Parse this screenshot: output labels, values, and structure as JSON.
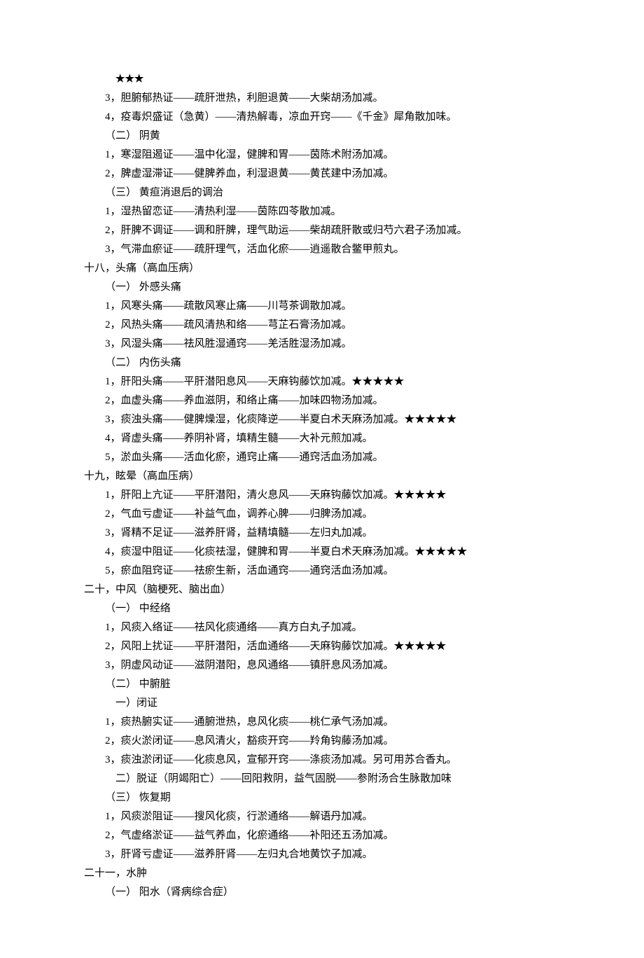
{
  "lines": [
    {
      "cls": "indent-1 stars",
      "name": "stars-line",
      "text": "★★★"
    },
    {
      "cls": "indent-2",
      "name": "item-17-3",
      "text": "3，胆腑郁热证——疏肝泄热，利胆退黄——大柴胡汤加减。"
    },
    {
      "cls": "indent-2",
      "name": "item-17-4",
      "text": "4，疫毒炽盛证（急黄）——清热解毒，凉血开窍——《千金》犀角散加味。"
    },
    {
      "cls": "indent-2",
      "name": "subsection-17-2",
      "text": "（二） 阴黄"
    },
    {
      "cls": "indent-2",
      "name": "item-17-2-1",
      "text": "1，寒湿阻遏证——温中化湿，健脾和胃——茵陈术附汤加减。"
    },
    {
      "cls": "indent-2",
      "name": "item-17-2-2",
      "text": "2，脾虚湿滞证——健脾养血，利湿退黄——黄芪建中汤加减。"
    },
    {
      "cls": "indent-2",
      "name": "subsection-17-3",
      "text": "（三） 黄疸消退后的调治"
    },
    {
      "cls": "indent-2",
      "name": "item-17-3-1",
      "text": "1，湿热留恋证——清热利湿——茵陈四苓散加减。"
    },
    {
      "cls": "indent-2",
      "name": "item-17-3-2",
      "text": "2，肝脾不调证——调和肝脾，理气助运——柴胡疏肝散或归芍六君子汤加减。"
    },
    {
      "cls": "indent-2",
      "name": "item-17-3-3",
      "text": "3，气滞血瘀证——疏肝理气，活血化瘀——逍遥散合鳖甲煎丸。"
    },
    {
      "cls": "section",
      "name": "section-18",
      "text": "十八，头痛（高血压病）"
    },
    {
      "cls": "indent-2",
      "name": "subsection-18-1",
      "text": "（一） 外感头痛"
    },
    {
      "cls": "indent-2",
      "name": "item-18-1-1",
      "text": "1，风寒头痛——疏散风寒止痛——川芎茶调散加减。"
    },
    {
      "cls": "indent-2",
      "name": "item-18-1-2",
      "text": "2，风热头痛——疏风清热和络——芎芷石膏汤加减。"
    },
    {
      "cls": "indent-2",
      "name": "item-18-1-3",
      "text": "3，风湿头痛——祛风胜湿通窍——羌活胜湿汤加减。"
    },
    {
      "cls": "indent-2",
      "name": "subsection-18-2",
      "text": "（二） 内伤头痛"
    },
    {
      "cls": "indent-2",
      "name": "item-18-2-1",
      "text": "1，肝阳头痛——平肝潜阳息风——天麻钩藤饮加减。★★★★★"
    },
    {
      "cls": "indent-2",
      "name": "item-18-2-2",
      "text": "2，血虚头痛——养血滋阴，和络止痛——加味四物汤加减。"
    },
    {
      "cls": "indent-2",
      "name": "item-18-2-3",
      "text": "3，痰浊头痛——健脾燥湿，化痰降逆——半夏白术天麻汤加减。★★★★★"
    },
    {
      "cls": "indent-2",
      "name": "item-18-2-4",
      "text": "4，肾虚头痛——养阴补肾，填精生髓——大补元煎加减。"
    },
    {
      "cls": "indent-2",
      "name": "item-18-2-5",
      "text": "5，淤血头痛——活血化瘀，通窍止痛——通窍活血汤加减。"
    },
    {
      "cls": "section",
      "name": "section-19",
      "text": "十九，眩晕（高血压病）"
    },
    {
      "cls": "indent-2",
      "name": "item-19-1",
      "text": "1，肝阳上亢证——平肝潜阳，清火息风——天麻钩藤饮加减。★★★★★"
    },
    {
      "cls": "indent-2",
      "name": "item-19-2",
      "text": "2，气血亏虚证——补益气血，调养心脾——归脾汤加减。"
    },
    {
      "cls": "indent-2",
      "name": "item-19-3",
      "text": "3，肾精不足证——滋养肝肾，益精填髓——左归丸加减。"
    },
    {
      "cls": "indent-2",
      "name": "item-19-4",
      "text": "4，痰湿中阻证——化痰祛湿，健脾和胃——半夏白术天麻汤加减。★★★★★"
    },
    {
      "cls": "indent-2",
      "name": "item-19-5",
      "text": "5，瘀血阻窍证——祛瘀生新，活血通窍——通窍活血汤加减。"
    },
    {
      "cls": "section",
      "name": "section-20",
      "text": "二十，中风（脑梗死、脑出血）"
    },
    {
      "cls": "indent-2",
      "name": "subsection-20-1",
      "text": "（一） 中经络"
    },
    {
      "cls": "indent-2",
      "name": "item-20-1-1",
      "text": "1，风痰入络证——祛风化痰通络——真方白丸子加减。"
    },
    {
      "cls": "indent-2",
      "name": "item-20-1-2",
      "text": "2，风阳上扰证——平肝潜阳，活血通络——天麻钩藤饮加减。★★★★★"
    },
    {
      "cls": "indent-2",
      "name": "item-20-1-3",
      "text": "3，阴虚风动证——滋阴潜阳，息风通络——镇肝息风汤加减。"
    },
    {
      "cls": "indent-2",
      "name": "subsection-20-2",
      "text": "（二） 中腑脏"
    },
    {
      "cls": "indent-3",
      "name": "subsection-20-2-1",
      "text": "一）闭证"
    },
    {
      "cls": "indent-2",
      "name": "item-20-2-1-1",
      "text": "1，痰热腑实证——通腑泄热，息风化痰——桃仁承气汤加减。"
    },
    {
      "cls": "indent-2",
      "name": "item-20-2-1-2",
      "text": "2，痰火淤闭证——息风清火，豁痰开窍——羚角钩藤汤加减。"
    },
    {
      "cls": "indent-2",
      "name": "item-20-2-1-3",
      "text": "3，痰浊淤闭证——化痰息风，宣郁开窍——涤痰汤加减。另可用苏合香丸。"
    },
    {
      "cls": "indent-3",
      "name": "subsection-20-2-2",
      "text": "二）脱证（阴竭阳亡）——回阳救阴，益气固脱——参附汤合生脉散加味"
    },
    {
      "cls": "indent-2",
      "name": "subsection-20-3",
      "text": "（三） 恢复期"
    },
    {
      "cls": "indent-2",
      "name": "item-20-3-1",
      "text": "1，风痰淤阻证——搜风化痰，行淤通络——解语丹加减。"
    },
    {
      "cls": "indent-2",
      "name": "item-20-3-2",
      "text": "2，气虚络淤证——益气养血，化瘀通络——补阳还五汤加减。"
    },
    {
      "cls": "indent-2",
      "name": "item-20-3-3",
      "text": "3，肝肾亏虚证——滋养肝肾——左归丸合地黄饮子加减。"
    },
    {
      "cls": "section",
      "name": "section-21",
      "text": "二十一，水肿"
    },
    {
      "cls": "indent-2",
      "name": "subsection-21-1",
      "text": "（一） 阳水（肾病综合症）"
    }
  ]
}
